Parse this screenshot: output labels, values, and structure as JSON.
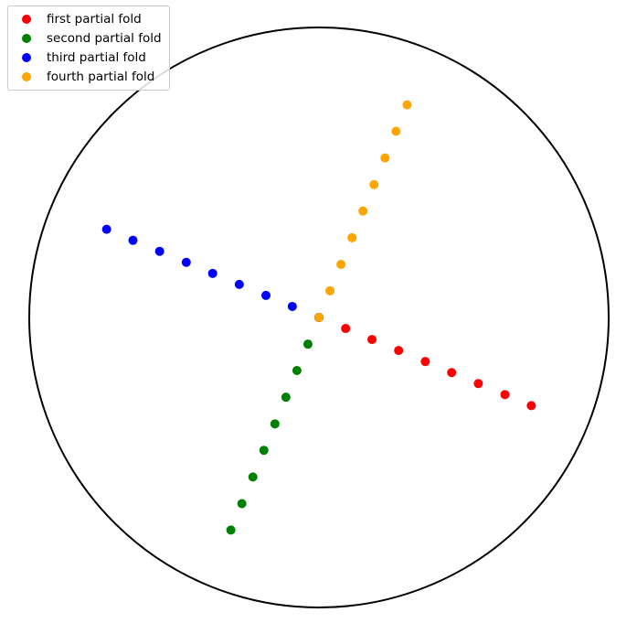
{
  "chart_data": {
    "type": "scatter",
    "title": "",
    "xlabel": "",
    "ylabel": "",
    "axes_visible": false,
    "grid": false,
    "boundary": "unit circle",
    "xlim": [
      -1,
      1
    ],
    "ylim": [
      -1,
      1
    ],
    "legend": {
      "placement": "top-left"
    },
    "series": [
      {
        "name": "first partial fold",
        "color": "#ff0000",
        "x": [
          0.0,
          0.092,
          0.183,
          0.275,
          0.367,
          0.458,
          0.55,
          0.642,
          0.733
        ],
        "y": [
          0.0,
          -0.038,
          -0.076,
          -0.114,
          -0.152,
          -0.19,
          -0.228,
          -0.266,
          -0.304
        ]
      },
      {
        "name": "second partial fold",
        "color": "#008000",
        "x": [
          0.0,
          -0.038,
          -0.076,
          -0.114,
          -0.152,
          -0.19,
          -0.228,
          -0.266,
          -0.304
        ],
        "y": [
          0.0,
          -0.092,
          -0.183,
          -0.275,
          -0.367,
          -0.458,
          -0.55,
          -0.642,
          -0.733
        ]
      },
      {
        "name": "third partial fold",
        "color": "#0000ff",
        "x": [
          0.0,
          -0.092,
          -0.183,
          -0.275,
          -0.367,
          -0.458,
          -0.55,
          -0.642,
          -0.733
        ],
        "y": [
          0.0,
          0.038,
          0.076,
          0.114,
          0.152,
          0.19,
          0.228,
          0.266,
          0.304
        ]
      },
      {
        "name": "fourth partial fold",
        "color": "#ffa500",
        "x": [
          0.0,
          0.038,
          0.076,
          0.114,
          0.152,
          0.19,
          0.228,
          0.266,
          0.304
        ],
        "y": [
          0.0,
          0.092,
          0.183,
          0.275,
          0.367,
          0.458,
          0.55,
          0.642,
          0.733
        ]
      }
    ]
  }
}
